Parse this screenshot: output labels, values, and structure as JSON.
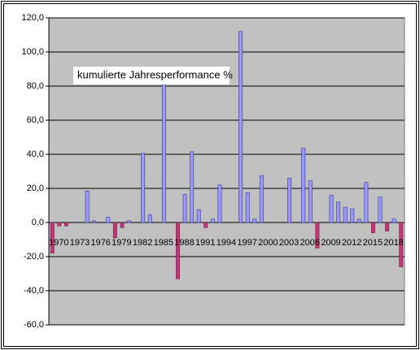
{
  "chart_data": {
    "type": "bar",
    "annotation": "kumulierte Jahresperformance %",
    "categories": [
      "1970",
      null,
      null,
      "1973",
      null,
      null,
      "1976",
      null,
      null,
      "1979",
      null,
      null,
      "1982",
      null,
      null,
      "1985",
      null,
      null,
      "1988",
      null,
      null,
      "1991",
      null,
      null,
      "1994",
      null,
      null,
      "1997",
      null,
      null,
      "2000",
      null,
      null,
      "2003",
      null,
      null,
      "2006",
      null,
      null,
      "2009",
      null,
      null,
      "2012",
      null,
      null,
      "2015",
      null,
      null,
      "2018",
      null,
      null
    ],
    "values": [
      -18,
      -2,
      -2,
      0,
      0,
      18.5,
      1,
      0,
      3,
      -9,
      -3,
      1,
      0,
      40.5,
      4.5,
      0,
      82,
      0,
      -33,
      16.5,
      41.5,
      7.5,
      -3,
      2,
      22,
      0,
      0,
      112,
      17.5,
      2,
      27.5,
      0,
      0,
      0,
      26,
      0,
      43.5,
      24.5,
      -15,
      0,
      16,
      12,
      9,
      8,
      2,
      23.5,
      -6,
      15,
      -5,
      2,
      -26
    ],
    "color": "#9999ff",
    "negative_color": "#cc3377",
    "ylim": [
      -60,
      120
    ],
    "yticks": [
      {
        "value": -60,
        "label": "-60,0"
      },
      {
        "value": -40,
        "label": "-40,0"
      },
      {
        "value": -20,
        "label": "-20,0"
      },
      {
        "value": 0,
        "label": "0,0"
      },
      {
        "value": 20,
        "label": "20,0"
      },
      {
        "value": 40,
        "label": "40,0"
      },
      {
        "value": 60,
        "label": "60,0"
      },
      {
        "value": 80,
        "label": "80,0"
      },
      {
        "value": 100,
        "label": "100,0"
      },
      {
        "value": 120,
        "label": "120,0"
      }
    ],
    "grid": true
  }
}
